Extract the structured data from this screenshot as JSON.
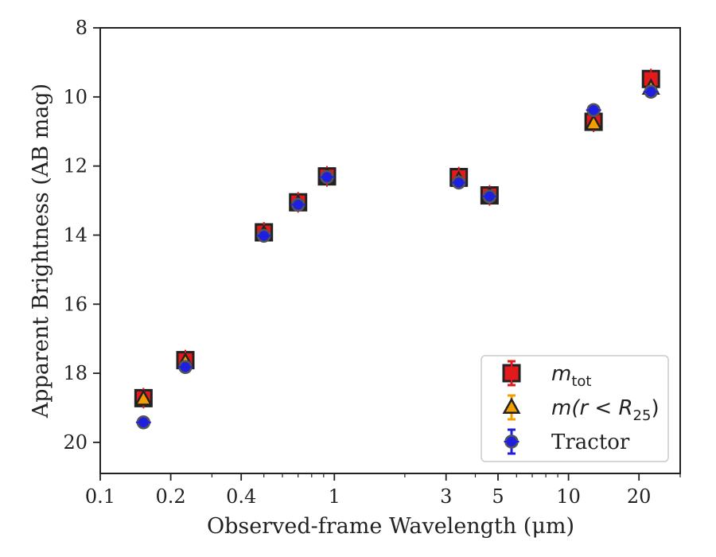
{
  "chart_data": {
    "type": "scatter",
    "xlabel": "Observed-frame Wavelength (μm)",
    "ylabel": "Apparent Brightness (AB mag)",
    "xscale": "log",
    "xlim": [
      0.1,
      30
    ],
    "ylim": [
      20.9,
      8
    ],
    "y_inverted": true,
    "xticks": [
      {
        "value": 0.1,
        "label": "0.1"
      },
      {
        "value": 0.2,
        "label": "0.2"
      },
      {
        "value": 0.4,
        "label": "0.4"
      },
      {
        "value": 1,
        "label": "1"
      },
      {
        "value": 3,
        "label": "3"
      },
      {
        "value": 5,
        "label": "5"
      },
      {
        "value": 10,
        "label": "10"
      },
      {
        "value": 20,
        "label": "20"
      }
    ],
    "yticks": [
      {
        "value": 8,
        "label": "8"
      },
      {
        "value": 10,
        "label": "10"
      },
      {
        "value": 12,
        "label": "12"
      },
      {
        "value": 14,
        "label": "14"
      },
      {
        "value": 16,
        "label": "16"
      },
      {
        "value": 18,
        "label": "18"
      },
      {
        "value": 20,
        "label": "20"
      }
    ],
    "grid": false,
    "legend_position": "lower-right",
    "series": [
      {
        "name": "m_tot",
        "marker": "square",
        "color": "#e31a1c",
        "x": [
          0.153,
          0.231,
          0.5,
          0.7,
          0.93,
          3.4,
          4.6,
          12.8,
          22.5
        ],
        "y": [
          18.72,
          17.62,
          13.92,
          13.05,
          12.3,
          12.32,
          12.85,
          10.72,
          9.48
        ]
      },
      {
        "name": "m(r < R25)",
        "marker": "triangle",
        "color": "#f59e00",
        "x": [
          0.153,
          0.231,
          0.5,
          0.7,
          0.93,
          3.4,
          4.6,
          12.8,
          22.5
        ],
        "y": [
          18.75,
          17.68,
          13.98,
          13.1,
          12.32,
          12.42,
          12.88,
          10.78,
          9.75
        ]
      },
      {
        "name": "Tractor",
        "marker": "circle",
        "color": "#1f1fe0",
        "x": [
          0.153,
          0.231,
          0.5,
          0.7,
          0.93,
          3.4,
          4.6,
          12.8,
          22.5
        ],
        "y": [
          19.42,
          17.82,
          14.02,
          13.12,
          12.32,
          12.48,
          12.88,
          10.38,
          9.85
        ]
      }
    ],
    "legend_entries": [
      {
        "base": "m",
        "sub": "tot",
        "suffix": ""
      },
      {
        "base": "m(r < R",
        "sub": "25",
        "suffix": ")"
      },
      {
        "base": "Tractor",
        "sub": "",
        "suffix": ""
      }
    ]
  }
}
